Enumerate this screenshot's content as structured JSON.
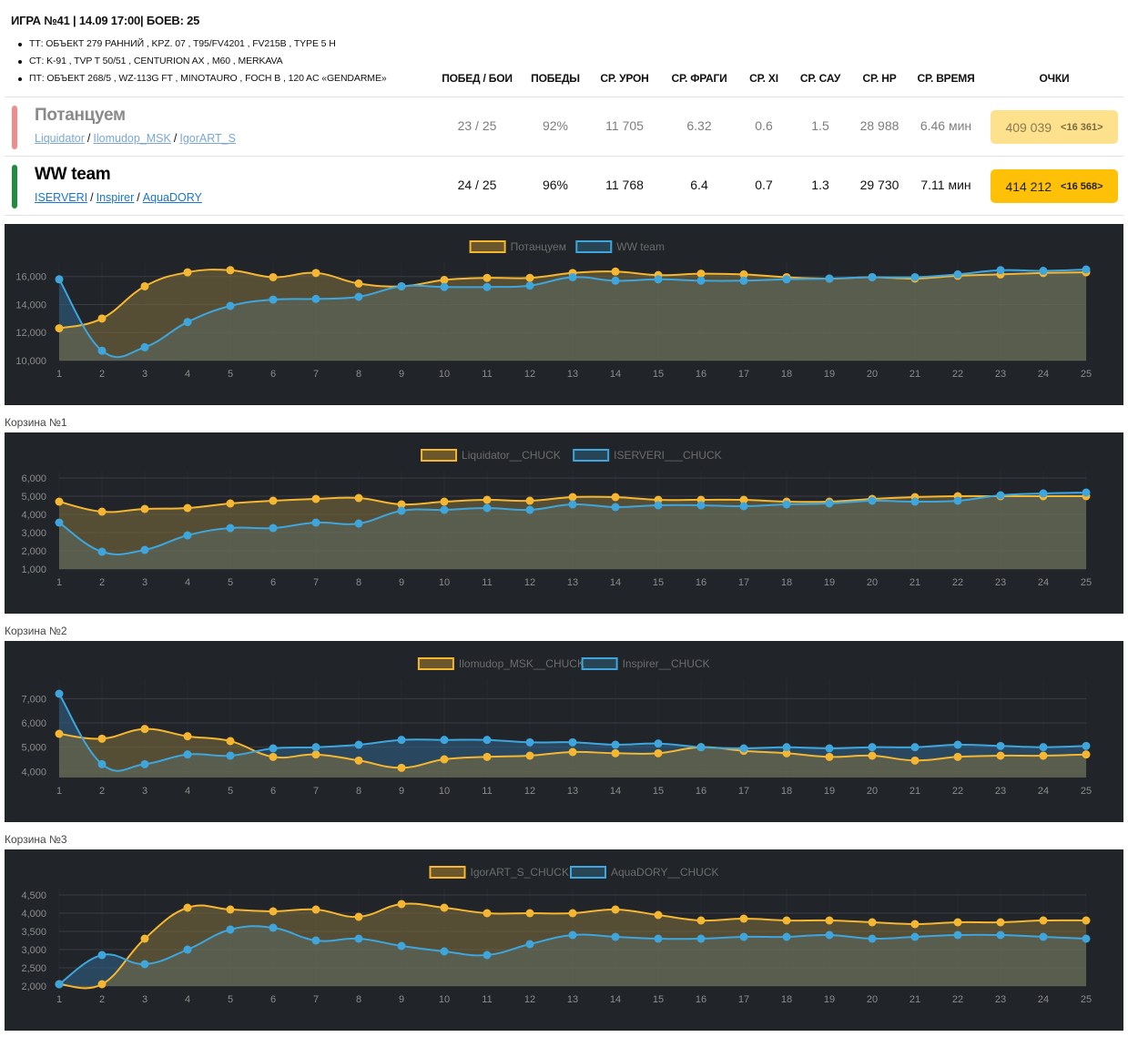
{
  "header": {
    "title": "ИГРА №41 | 14.09 17:00| БОЕВ: 25",
    "tanks": [
      "ТТ: ОБЪЕКТ 279 РАННИЙ , KPZ. 07 , T95/FV4201 , FV215B , TYPE 5 H",
      "СТ: K-91 , TVP T 50/51 , CENTURION AX , M60 , MERKAVA",
      "ПТ: ОБЪЕКТ 268/5 , WZ-113G FT , MINOTAURO , FOCH B , 120 AC «GENDARME»"
    ]
  },
  "columns": [
    "ПОБЕД / БОИ",
    "ПОБЕДЫ",
    "СР. УРОН",
    "СР. ФРАГИ",
    "СР. XI",
    "СР. САУ",
    "СР. HP",
    "СР. ВРЕМЯ",
    "ОЧКИ"
  ],
  "teams": [
    {
      "name": "Потанцуем",
      "players": [
        "Liquidator",
        "Ilomudop_MSK",
        "IgorART_S"
      ],
      "stats": [
        "23 / 25",
        "92%",
        "11 705",
        "6.32",
        "0.6",
        "1.5",
        "28 988",
        "6.46 мин"
      ],
      "points": "409 039",
      "bonus": "<16 361>",
      "color": "#f28b8b"
    },
    {
      "name": "WW team",
      "players": [
        "ISERVERI",
        "Inspirer",
        "AquaDORY"
      ],
      "stats": [
        "24 / 25",
        "96%",
        "11 768",
        "6.4",
        "0.7",
        "1.3",
        "29 730",
        "7.11 мин"
      ],
      "points": "414 212",
      "bonus": "<16 568>",
      "color": "#1e8e3e"
    }
  ],
  "baskets": [
    "Корзина №1",
    "Корзина №2",
    "Корзина №3"
  ],
  "colors": {
    "series_a": "#f5b731",
    "series_b": "#3ea6dd",
    "panel_bg": "#212429",
    "grid": "#3a3d42",
    "tick": "#8c8c8c"
  },
  "chart_data": [
    {
      "type": "area",
      "x": [
        1,
        2,
        3,
        4,
        5,
        6,
        7,
        8,
        9,
        10,
        11,
        12,
        13,
        14,
        15,
        16,
        17,
        18,
        19,
        20,
        21,
        22,
        23,
        24,
        25
      ],
      "ylim": [
        10000,
        16500
      ],
      "yticks": [
        10000,
        12000,
        14000,
        16000
      ],
      "ytick_labels": [
        "10,000",
        "12,000",
        "14,000",
        "16,000"
      ],
      "series": [
        {
          "name": "Потанцуем",
          "values": [
            12300,
            13000,
            15300,
            16300,
            16450,
            15950,
            16250,
            15500,
            15300,
            15750,
            15900,
            15900,
            16250,
            16350,
            16100,
            16200,
            16150,
            15950,
            15850,
            15950,
            15850,
            16050,
            16150,
            16250,
            16300
          ]
        },
        {
          "name": "WW team",
          "values": [
            15800,
            10700,
            10950,
            12750,
            13900,
            14350,
            14400,
            14550,
            15300,
            15250,
            15250,
            15350,
            15950,
            15700,
            15800,
            15700,
            15700,
            15800,
            15850,
            15950,
            15950,
            16150,
            16450,
            16400,
            16500
          ]
        }
      ]
    },
    {
      "type": "area",
      "x": [
        1,
        2,
        3,
        4,
        5,
        6,
        7,
        8,
        9,
        10,
        11,
        12,
        13,
        14,
        15,
        16,
        17,
        18,
        19,
        20,
        21,
        22,
        23,
        24,
        25
      ],
      "ylim": [
        1000,
        6000
      ],
      "yticks": [
        1000,
        2000,
        3000,
        4000,
        5000,
        6000
      ],
      "ytick_labels": [
        "1,000",
        "2,000",
        "3,000",
        "4,000",
        "5,000",
        "6,000"
      ],
      "series": [
        {
          "name": "Liquidator__CHUCK",
          "values": [
            4700,
            4150,
            4300,
            4350,
            4600,
            4750,
            4850,
            4900,
            4550,
            4700,
            4800,
            4750,
            4950,
            4950,
            4800,
            4800,
            4800,
            4700,
            4700,
            4850,
            4950,
            5000,
            5000,
            5000,
            5000
          ]
        },
        {
          "name": "ISERVERI___CHUCK",
          "values": [
            3550,
            1950,
            2050,
            2850,
            3250,
            3250,
            3550,
            3500,
            4200,
            4250,
            4350,
            4250,
            4550,
            4400,
            4500,
            4500,
            4450,
            4550,
            4600,
            4750,
            4700,
            4750,
            5050,
            5150,
            5200
          ]
        }
      ]
    },
    {
      "type": "area",
      "x": [
        1,
        2,
        3,
        4,
        5,
        6,
        7,
        8,
        9,
        10,
        11,
        12,
        13,
        14,
        15,
        16,
        17,
        18,
        19,
        20,
        21,
        22,
        23,
        24,
        25
      ],
      "ylim": [
        3750,
        7500
      ],
      "yticks": [
        4000,
        5000,
        6000,
        7000
      ],
      "ytick_labels": [
        "4,000",
        "5,000",
        "6,000",
        "7,000"
      ],
      "series": [
        {
          "name": "Ilomudop_MSK__CHUCK",
          "values": [
            5550,
            5350,
            5750,
            5450,
            5250,
            4600,
            4700,
            4450,
            4150,
            4500,
            4600,
            4650,
            4800,
            4750,
            4750,
            5000,
            4850,
            4750,
            4600,
            4650,
            4450,
            4600,
            4650,
            4650,
            4700
          ]
        },
        {
          "name": "Inspirer__CHUCK",
          "values": [
            7200,
            4300,
            4300,
            4700,
            4650,
            4950,
            5000,
            5100,
            5300,
            5300,
            5300,
            5200,
            5200,
            5100,
            5150,
            5000,
            4950,
            5000,
            4950,
            5000,
            5000,
            5100,
            5050,
            5000,
            5050
          ]
        }
      ]
    },
    {
      "type": "area",
      "x": [
        1,
        2,
        3,
        4,
        5,
        6,
        7,
        8,
        9,
        10,
        11,
        12,
        13,
        14,
        15,
        16,
        17,
        18,
        19,
        20,
        21,
        22,
        23,
        24,
        25
      ],
      "ylim": [
        2000,
        4500
      ],
      "yticks": [
        2000,
        2500,
        3000,
        3500,
        4000,
        4500
      ],
      "ytick_labels": [
        "2,000",
        "2,500",
        "3,000",
        "3,500",
        "4,000",
        "4,500"
      ],
      "series": [
        {
          "name": "IgorART_S_CHUCK",
          "values": [
            2050,
            2050,
            3300,
            4150,
            4100,
            4050,
            4100,
            3900,
            4250,
            4150,
            4000,
            4000,
            4000,
            4100,
            3950,
            3800,
            3850,
            3800,
            3800,
            3750,
            3700,
            3750,
            3750,
            3800,
            3800
          ]
        },
        {
          "name": "AquaDORY__CHUCK",
          "values": [
            2050,
            2850,
            2600,
            3000,
            3550,
            3600,
            3250,
            3300,
            3100,
            2950,
            2850,
            3150,
            3400,
            3350,
            3300,
            3300,
            3350,
            3350,
            3400,
            3300,
            3350,
            3400,
            3400,
            3350,
            3300
          ]
        }
      ]
    }
  ]
}
